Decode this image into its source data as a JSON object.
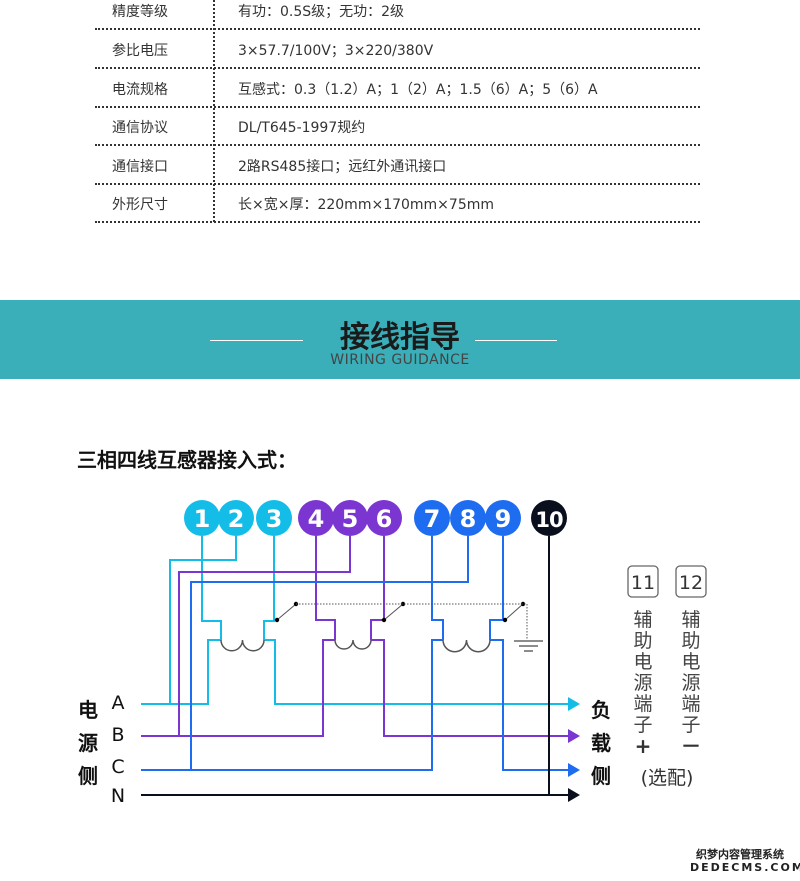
{
  "specs": [
    {
      "label": "精度等级",
      "value": "有功：0.5S级；无功：2级"
    },
    {
      "label": "参比电压",
      "value": "3×57.7/100V；3×220/380V"
    },
    {
      "label": "电流规格",
      "value": "互感式：0.3（1.2）A；1（2）A；1.5（6）A；5（6）A"
    },
    {
      "label": "通信协议",
      "value": "DL/T645-1997规约"
    },
    {
      "label": "通信接口",
      "value": "2路RS485接口；远红外通讯接口"
    },
    {
      "label": "外形尺寸",
      "value": "长×宽×厚：220mm×170mm×75mm"
    }
  ],
  "banner": {
    "title": "接线指导",
    "subtitle": "WIRING GUIDANCE",
    "color": "#3aafb9"
  },
  "section_title": "三相四线互感器接入式：",
  "diagram": {
    "terminals": [
      "1",
      "2",
      "3",
      "4",
      "5",
      "6",
      "7",
      "8",
      "9",
      "10"
    ],
    "colors": {
      "A": "#14bde8",
      "B": "#7b35d0",
      "C": "#1e6df0",
      "N": "#0a0f1e"
    },
    "source_label": [
      "电",
      "源",
      "侧"
    ],
    "phases": [
      "A",
      "B",
      "C",
      "N"
    ],
    "load_label": [
      "负",
      "载",
      "侧"
    ],
    "aux_terminals": [
      {
        "num": "11",
        "label": [
          "辅",
          "助",
          "电",
          "源",
          "端",
          "子"
        ],
        "sign": "+"
      },
      {
        "num": "12",
        "label": [
          "辅",
          "助",
          "电",
          "源",
          "端",
          "子"
        ],
        "sign": "－"
      }
    ],
    "optional": "(选配)"
  },
  "watermark": {
    "line1": "织梦内容管理系统",
    "line2": "DEDECMS.COM"
  }
}
